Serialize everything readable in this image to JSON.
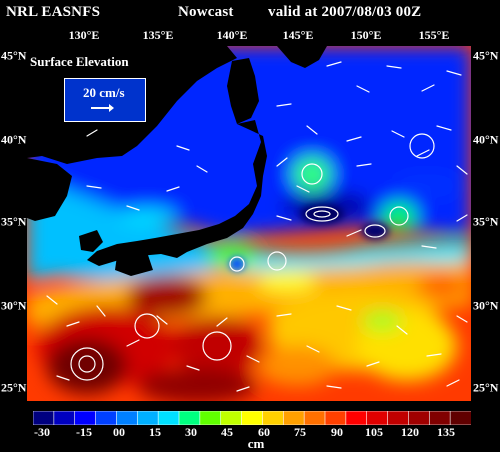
{
  "header": {
    "model": "NRL EASNFS",
    "mode": "Nowcast",
    "valid": "valid at 2007/08/03 00Z"
  },
  "longitudes": [
    "130°E",
    "135°E",
    "140°E",
    "145°E",
    "150°E",
    "155°E"
  ],
  "latitudes": [
    "45°N",
    "40°N",
    "35°N",
    "30°N",
    "25°N"
  ],
  "legend": {
    "title": "Surface Elevation",
    "vector_scale": "20 cm/s"
  },
  "colorbar": {
    "unit": "cm",
    "ticks": [
      "-30",
      "-15",
      "00",
      "15",
      "30",
      "45",
      "60",
      "75",
      "90",
      "105",
      "120",
      "135"
    ],
    "colors": [
      "#000080",
      "#0000c0",
      "#0000ff",
      "#0040ff",
      "#0080ff",
      "#00b0ff",
      "#00e0ff",
      "#00ff80",
      "#60ff00",
      "#c0ff00",
      "#ffff00",
      "#ffd000",
      "#ffa000",
      "#ff7000",
      "#ff4000",
      "#ff0000",
      "#e00000",
      "#c00000",
      "#a00000",
      "#800000",
      "#600000"
    ]
  }
}
